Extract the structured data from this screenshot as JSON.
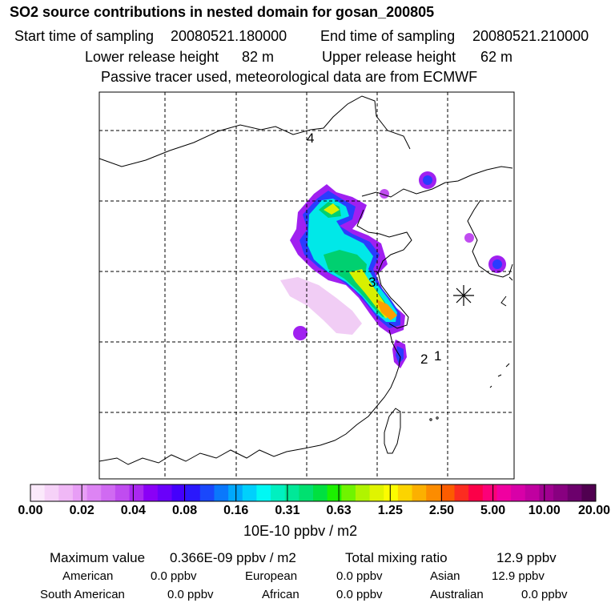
{
  "header": {
    "title": "SO2 source contributions in nested domain for gosan_200805",
    "start_label": "Start time of sampling",
    "start_value": "20080521.180000",
    "end_label": "End time of sampling",
    "end_value": "20080521.210000",
    "lower_label": "Lower release height",
    "lower_value": "82 m",
    "upper_label": "Upper release height",
    "upper_value": "62 m",
    "note": "Passive tracer used, meteorological data are from ECMWF"
  },
  "map": {
    "markers": [
      {
        "label": "4"
      },
      {
        "label": "3"
      },
      {
        "label": "2"
      },
      {
        "label": "1"
      }
    ],
    "receptor_icon": "asterisk-receptor-icon"
  },
  "colorbar": {
    "colors": [
      "#fbe9fb",
      "#f6d2f8",
      "#f0b8f6",
      "#e89ef6",
      "#dd84f4",
      "#d06af2",
      "#c04cf0",
      "#aa28f0",
      "#8a00f6",
      "#6a00fa",
      "#4400fc",
      "#2a18fc",
      "#1a48fc",
      "#0a78fc",
      "#00a8fc",
      "#00d0fc",
      "#00f8f4",
      "#00f0c0",
      "#00e898",
      "#00e070",
      "#00e040",
      "#1cf000",
      "#70f400",
      "#b0f400",
      "#e0f400",
      "#fcfc00",
      "#fcd400",
      "#fcb000",
      "#fc8c00",
      "#fc5c00",
      "#fc2c20",
      "#fc0048",
      "#fc0078",
      "#f000a0",
      "#d800a8",
      "#c000a0",
      "#a00090",
      "#880080",
      "#6c006c",
      "#500050"
    ],
    "labels": [
      "0.00",
      "0.02",
      "0.04",
      "0.08",
      "0.16",
      "0.31",
      "0.63",
      "1.25",
      "2.50",
      "5.00",
      "10.00",
      "20.00"
    ],
    "unit": "10E-10 ppbv / m2"
  },
  "footer": {
    "max_label": "Maximum value",
    "max_value": "0.366E-09 ppbv / m2",
    "total_label": "Total mixing ratio",
    "total_value": "12.9 ppbv",
    "regions": [
      {
        "name": "American",
        "value": "0.0 ppbv"
      },
      {
        "name": "European",
        "value": "0.0 ppbv"
      },
      {
        "name": "Asian",
        "value": "12.9 ppbv"
      },
      {
        "name": "South American",
        "value": "0.0 ppbv"
      },
      {
        "name": "African",
        "value": "0.0 ppbv"
      },
      {
        "name": "Australian",
        "value": "0.0 ppbv"
      }
    ]
  }
}
